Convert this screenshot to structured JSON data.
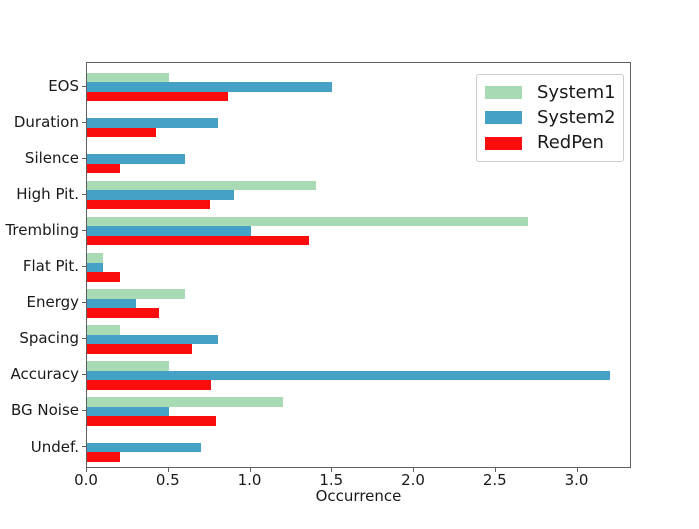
{
  "figure": {
    "xlabel": "Occurrence",
    "x_tick_labels": [
      "0.0",
      "0.5",
      "1.0",
      "1.5",
      "2.0",
      "2.5",
      "3.0"
    ]
  },
  "legend": {
    "position": "upper right",
    "items": [
      {
        "label": "System1",
        "color": "#a8dbb3"
      },
      {
        "label": "System2",
        "color": "#45a1c5"
      },
      {
        "label": "RedPen",
        "color": "#fb0d0d"
      }
    ]
  },
  "chart_data": {
    "type": "bar",
    "orientation": "horizontal",
    "title": "",
    "xlabel": "Occurrence",
    "ylabel": "",
    "grid": false,
    "xlim": [
      0,
      3.34
    ],
    "x_ticks": [
      0,
      0.5,
      1.0,
      1.5,
      2.0,
      2.5,
      3.0
    ],
    "categories": [
      "EOS",
      "Duration",
      "Silence",
      "High Pit.",
      "Trembling",
      "Flat Pit.",
      "Energy",
      "Spacing",
      "Accuracy",
      "BG Noise",
      "Undef."
    ],
    "series": [
      {
        "name": "System1",
        "color": "#a8dbb3",
        "values": [
          0.5,
          0,
          0,
          1.4,
          2.7,
          0.1,
          0.6,
          0.2,
          0.5,
          1.2,
          0
        ]
      },
      {
        "name": "System2",
        "color": "#45a1c5",
        "values": [
          1.5,
          0.8,
          0.6,
          0.9,
          1.0,
          0.1,
          0.3,
          0.8,
          3.2,
          0.5,
          0.7
        ]
      },
      {
        "name": "RedPen",
        "color": "#fb0d0d",
        "values": [
          0.86,
          0.42,
          0.2,
          0.75,
          1.36,
          0.2,
          0.44,
          0.64,
          0.76,
          0.79,
          0.2
        ]
      }
    ],
    "legend_position": "upper right"
  }
}
